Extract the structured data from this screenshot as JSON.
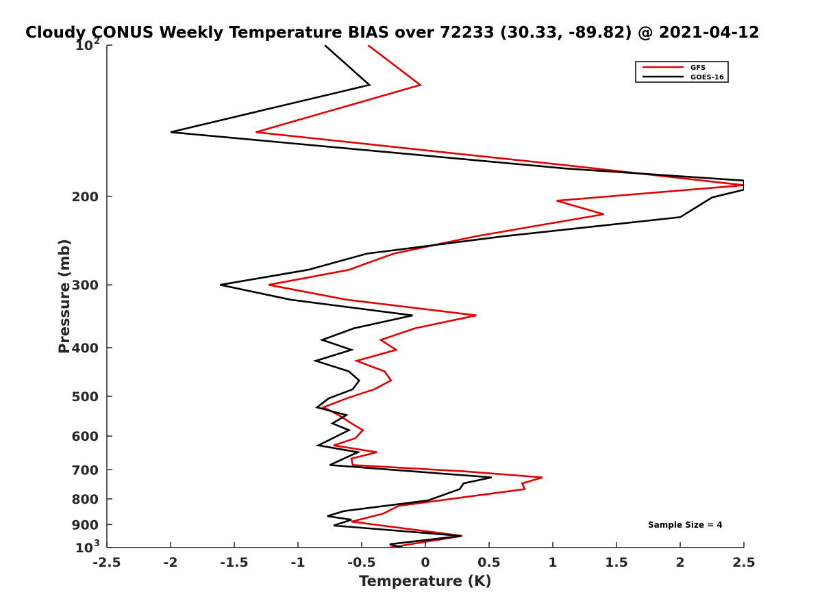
{
  "chart_data": {
    "type": "line",
    "title": "Cloudy CONUS Weekly Temperature BIAS over 72233 (30.33, -89.82) @ 2021-04-12",
    "xlabel": "Temperature (K)",
    "ylabel": "Pressure (mb)",
    "xlim": [
      -2.5,
      2.5
    ],
    "ylim": [
      100,
      1000
    ],
    "yscale": "log",
    "y_reversed": true,
    "grid": false,
    "legend_position": "top-right",
    "x_ticks": [
      -2.5,
      -2,
      -1.5,
      -1,
      -0.5,
      0,
      0.5,
      1,
      1.5,
      2,
      2.5
    ],
    "x_tick_labels": [
      "-2.5",
      "-2",
      "-1.5",
      "-1",
      "-0.5",
      "0",
      "0.5",
      "1",
      "1.5",
      "2",
      "2.5"
    ],
    "y_ticks": [
      {
        "value": 100,
        "label": "10",
        "exp": "2"
      },
      {
        "value": 200,
        "label": "200",
        "exp": ""
      },
      {
        "value": 300,
        "label": "300",
        "exp": ""
      },
      {
        "value": 400,
        "label": "400",
        "exp": ""
      },
      {
        "value": 500,
        "label": "500",
        "exp": ""
      },
      {
        "value": 600,
        "label": "600",
        "exp": ""
      },
      {
        "value": 700,
        "label": "700",
        "exp": ""
      },
      {
        "value": 800,
        "label": "800",
        "exp": ""
      },
      {
        "value": 900,
        "label": "900",
        "exp": ""
      },
      {
        "value": 1000,
        "label": "10",
        "exp": "3"
      }
    ],
    "series": [
      {
        "name": "GFS",
        "color": "#e00000",
        "points": [
          [
            -0.45,
            100
          ],
          [
            -0.04,
            120
          ],
          [
            -1.33,
            149
          ],
          [
            1.16,
            174
          ],
          [
            2.5,
            190
          ],
          [
            1.03,
            204
          ],
          [
            1.4,
            217
          ],
          [
            0.4,
            240
          ],
          [
            -0.25,
            260
          ],
          [
            -0.6,
            280
          ],
          [
            -1.23,
            300
          ],
          [
            -0.62,
            321
          ],
          [
            0.4,
            345
          ],
          [
            -0.08,
            366
          ],
          [
            -0.35,
            386
          ],
          [
            -0.23,
            404
          ],
          [
            -0.54,
            425
          ],
          [
            -0.32,
            446
          ],
          [
            -0.27,
            465
          ],
          [
            -0.4,
            484
          ],
          [
            -0.62,
            505
          ],
          [
            -0.8,
            526
          ],
          [
            -0.68,
            545
          ],
          [
            -0.58,
            566
          ],
          [
            -0.49,
            584
          ],
          [
            -0.55,
            606
          ],
          [
            -0.72,
            626
          ],
          [
            -0.38,
            646
          ],
          [
            -0.58,
            665
          ],
          [
            -0.57,
            685
          ],
          [
            0.3,
            705
          ],
          [
            0.92,
            725
          ],
          [
            0.76,
            745
          ],
          [
            0.78,
            765
          ],
          [
            -0.21,
            826
          ],
          [
            -0.33,
            856
          ],
          [
            -0.58,
            888
          ],
          [
            0.29,
            948
          ],
          [
            -0.28,
            1000
          ]
        ]
      },
      {
        "name": "GOES-16",
        "color": "#000000",
        "points": [
          [
            -0.79,
            100
          ],
          [
            -0.44,
            120
          ],
          [
            -2.0,
            149
          ],
          [
            1.1,
            176
          ],
          [
            2.5,
            186
          ],
          [
            2.5,
            194
          ],
          [
            2.25,
            201
          ],
          [
            2.0,
            220
          ],
          [
            0.62,
            240
          ],
          [
            -0.46,
            260
          ],
          [
            -0.92,
            280
          ],
          [
            -1.61,
            300
          ],
          [
            -1.06,
            321
          ],
          [
            -0.1,
            345
          ],
          [
            -0.56,
            366
          ],
          [
            -0.81,
            386
          ],
          [
            -0.58,
            404
          ],
          [
            -0.86,
            425
          ],
          [
            -0.6,
            446
          ],
          [
            -0.52,
            465
          ],
          [
            -0.57,
            484
          ],
          [
            -0.76,
            505
          ],
          [
            -0.85,
            526
          ],
          [
            -0.62,
            545
          ],
          [
            -0.73,
            566
          ],
          [
            -0.6,
            584
          ],
          [
            -0.84,
            626
          ],
          [
            -0.53,
            646
          ],
          [
            -0.75,
            685
          ],
          [
            0.52,
            725
          ],
          [
            0.3,
            745
          ],
          [
            0.27,
            765
          ],
          [
            0.02,
            806
          ],
          [
            -0.64,
            846
          ],
          [
            -0.77,
            866
          ],
          [
            -0.58,
            880
          ],
          [
            -0.72,
            904
          ],
          [
            0.28,
            948
          ],
          [
            -0.28,
            985
          ],
          [
            -0.18,
            1000
          ]
        ]
      }
    ],
    "annotations": [
      {
        "text": "Sample Size = 4",
        "x": 2.0,
        "y": 910
      }
    ]
  }
}
